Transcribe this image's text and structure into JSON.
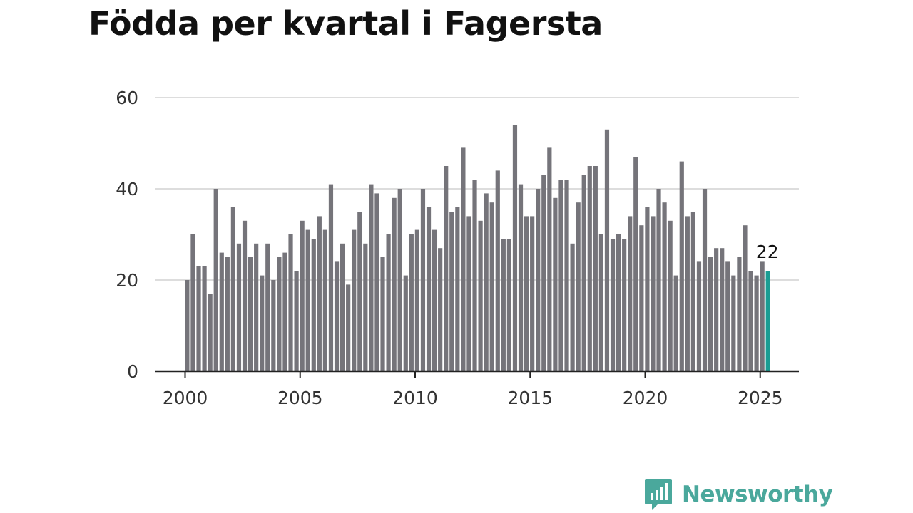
{
  "title": "Födda per kvartal i Fagersta",
  "brand": {
    "name": "Newsworthy"
  },
  "colors": {
    "bar": "#75747a",
    "highlight": "#1a9d93",
    "grid": "#dddddd",
    "axis": "#222222"
  },
  "chart_data": {
    "type": "bar",
    "title": "Födda per kvartal i Fagersta",
    "xlabel": "",
    "ylabel": "",
    "ylim": [
      0,
      60
    ],
    "yticks": [
      0,
      20,
      40,
      60
    ],
    "xticks": [
      2000,
      2005,
      2010,
      2015,
      2020,
      2025
    ],
    "grid": true,
    "legend": "none",
    "x_start": 2000,
    "x_step": 0.25,
    "values": [
      20,
      30,
      23,
      23,
      17,
      40,
      26,
      25,
      36,
      28,
      33,
      25,
      28,
      21,
      28,
      20,
      25,
      26,
      30,
      22,
      33,
      31,
      29,
      34,
      31,
      41,
      24,
      28,
      19,
      31,
      35,
      28,
      41,
      39,
      25,
      30,
      38,
      40,
      21,
      30,
      31,
      40,
      36,
      31,
      27,
      45,
      35,
      36,
      49,
      34,
      42,
      33,
      39,
      37,
      44,
      29,
      29,
      54,
      41,
      34,
      34,
      40,
      43,
      49,
      38,
      42,
      42,
      28,
      37,
      43,
      45,
      45,
      30,
      53,
      29,
      30,
      29,
      34,
      47,
      32,
      36,
      34,
      40,
      37,
      33,
      21,
      46,
      34,
      35,
      24,
      40,
      25,
      27,
      27,
      24,
      21,
      25,
      32,
      22,
      21,
      24,
      22
    ],
    "highlight": {
      "index": 101,
      "value": 22,
      "label": "22"
    }
  }
}
